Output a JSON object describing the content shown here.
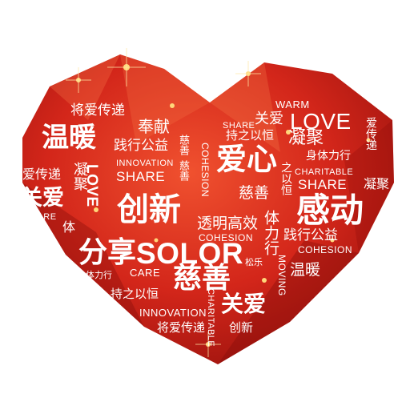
{
  "colors": {
    "heart_light": "#ee4a2c",
    "heart_mid": "#d3261a",
    "heart_dark": "#8f0d0a",
    "text": "#ffffff",
    "sparkle": "#ffd77a",
    "background": "#ffffff"
  },
  "words": {
    "jiang_ai_chuan_di_1": "将爱传递",
    "wen_nuan_1": "温暖",
    "feng_xian": "奉献",
    "jian_xing_gong_yi_1": "践行公益",
    "ci_shan_v1": "慈善",
    "ai_chuan_di": "爱传递",
    "ning_ju_v": "凝聚",
    "love_v": "LOVE",
    "share_1": "SHARE",
    "innovation_1": "INNOVATION",
    "guan_ai_1": "关爱",
    "care_1": "CARE",
    "chuang_xin_1": "创新",
    "ti_v": "体",
    "fen_xiang": "分享",
    "solor": "SOLOR",
    "care_2": "CARE",
    "shen_ti_li_xing_1": "身体力行",
    "chi_zhi_yi_heng_1": "持之以恒",
    "innovation_2": "INNOVATION",
    "jiang_ai_chuan_di_2": "将爱传递",
    "cohesion_v": "COHESION",
    "share_2": "SHARE",
    "guan_ai_2": "关爱",
    "chi_zhi_yi_heng_2": "持之以恒",
    "ai_xin": "爱心",
    "ci_shan_1": "慈善",
    "tou_ming_gao_xiao": "透明高效",
    "cohesion_1": "COHESION",
    "ci_shan_2": "慈善",
    "guan_ai_3": "关爱",
    "charitable_v": "CHARITABLE",
    "chuang_xin_2": "创新",
    "warm": "WARM",
    "love": "LOVE",
    "ning_ju": "凝聚",
    "shen_ti_li_xing_2": "身体力行",
    "charitable": "CHARITABLE",
    "share_3": "SHARE",
    "gan_dong": "感动",
    "cohesion_2": "COHESION",
    "jian_xing_gong_yi_2": "践行公益",
    "ti_li_xing_v": "体力行",
    "song_le": "松乐",
    "moving_v": "MOVING",
    "wen_nuan_2": "温暖",
    "zhi_yi_heng_v": "之以恒",
    "ning_ju_right": "凝聚",
    "ai_chuan_di_right_v": "爱传递"
  }
}
